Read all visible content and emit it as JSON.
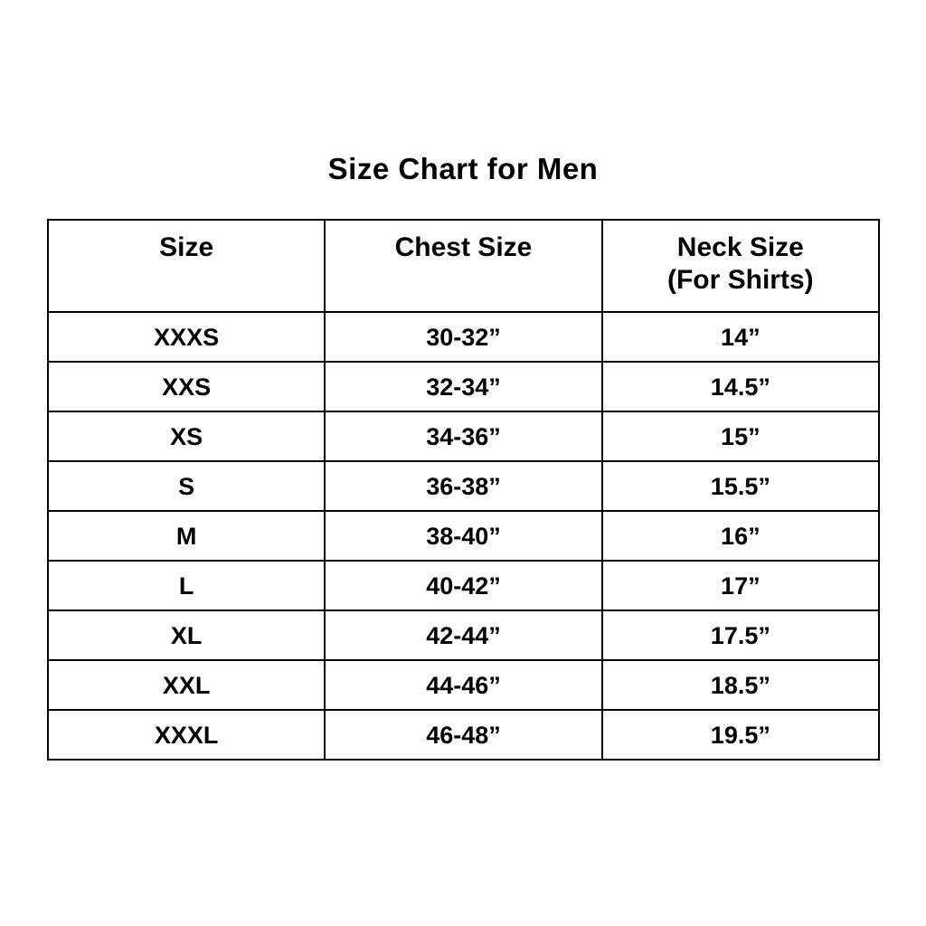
{
  "title": "Size Chart for Men",
  "colors": {
    "background": "#ffffff",
    "text": "#000000",
    "border": "#000000"
  },
  "chart_data": {
    "type": "table",
    "title": "Size Chart for Men",
    "columns": [
      "Size",
      "Chest Size",
      "Neck Size\n(For Shirts)"
    ],
    "rows": [
      [
        "XXXS",
        "30-32”",
        "14”"
      ],
      [
        "XXS",
        "32-34”",
        "14.5”"
      ],
      [
        "XS",
        "34-36”",
        "15”"
      ],
      [
        "S",
        "36-38”",
        "15.5”"
      ],
      [
        "M",
        "38-40”",
        "16”"
      ],
      [
        "L",
        "40-42”",
        "17”"
      ],
      [
        "XL",
        "42-44”",
        "17.5”"
      ],
      [
        "XXL",
        "44-46”",
        "18.5”"
      ],
      [
        "XXXL",
        "46-48”",
        "19.5”"
      ]
    ],
    "legend": null,
    "grid": "full-borders"
  }
}
